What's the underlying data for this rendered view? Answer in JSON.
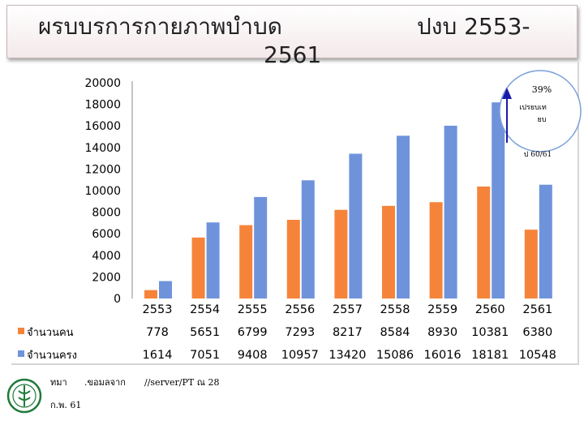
{
  "title": {
    "main": "ผรบบรการกายภาพบำบด",
    "main_line2": "2561",
    "right": "ปงบ   2553-"
  },
  "annotation": {
    "percent": "39%",
    "line1": "เปรยบเท",
    "line2": "ยบ",
    "line3": "ป  60/61"
  },
  "footer": {
    "source_label": "ทมา",
    "source_text": ".ขอมลจาก",
    "url_text": "//server/PT ณ  28",
    "date_text": "ก.พ. 61"
  },
  "colors": {
    "series1": "#F5843A",
    "series2": "#6F93DB",
    "annotation_arrow": "#1a1aa8"
  },
  "chart_data": {
    "type": "bar",
    "categories": [
      "2553",
      "2554",
      "2555",
      "2556",
      "2557",
      "2558",
      "2559",
      "2560",
      "2561"
    ],
    "series": [
      {
        "name": "จำนวนคน",
        "values": [
          778,
          5651,
          6799,
          7293,
          8217,
          8584,
          8930,
          10381,
          6380
        ]
      },
      {
        "name": "จำนวนครง",
        "values": [
          1614,
          7051,
          9408,
          10957,
          13420,
          15086,
          16016,
          18181,
          10548
        ]
      }
    ],
    "yticks": [
      "20000",
      "18000",
      "16000",
      "14000",
      "12000",
      "10000",
      "8000",
      "6000",
      "4000",
      "2000",
      "0"
    ],
    "ylim": [
      0,
      20000
    ],
    "legend": "data-table-left",
    "grid": false
  }
}
